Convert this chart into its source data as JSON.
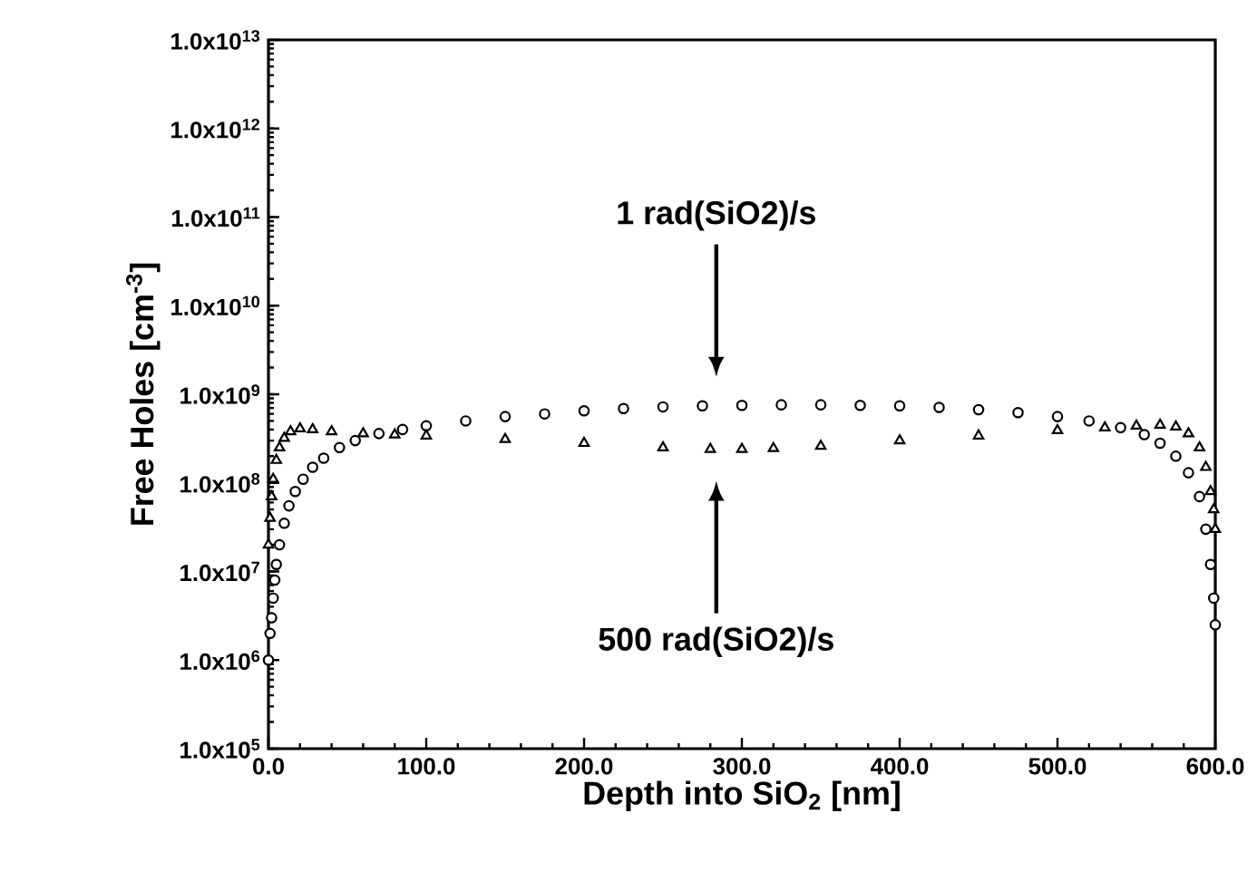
{
  "chart_data": {
    "type": "scatter",
    "xlabel": "Depth into SiO$_{2}$ [nm]",
    "ylabel": "Free Holes  [cm$^{-3}$]",
    "log": "y",
    "xlim": [
      0,
      600
    ],
    "ylim": [
      100000,
      10000000000000
    ],
    "xticks": [
      {
        "value": 0,
        "label": "0.0"
      },
      {
        "value": 100,
        "label": "100.0"
      },
      {
        "value": 200,
        "label": "200.0"
      },
      {
        "value": 300,
        "label": "300.0"
      },
      {
        "value": 400,
        "label": "400.0"
      },
      {
        "value": 500,
        "label": "500.0"
      },
      {
        "value": 600,
        "label": "600.0"
      }
    ],
    "yticks": [
      {
        "value": 100000,
        "label": "1.0x10$^{5}$"
      },
      {
        "value": 1000000,
        "label": "1.0x10$^{6}$"
      },
      {
        "value": 10000000,
        "label": "1.0x10$^{7}$"
      },
      {
        "value": 100000000,
        "label": "1.0x10$^{8}$"
      },
      {
        "value": 1000000000,
        "label": "1.0x10$^{9}$"
      },
      {
        "value": 10000000000,
        "label": "1.0x10$^{10}$"
      },
      {
        "value": 100000000000,
        "label": "1.0x10$^{11}$"
      },
      {
        "value": 1000000000000,
        "label": "1.0x10$^{12}$"
      },
      {
        "value": 10000000000000,
        "label": "1.0x10$^{13}$"
      }
    ],
    "series": [
      {
        "color": "#000000",
        "marker": "circle",
        "x": [
          0,
          1,
          2,
          3,
          4,
          5,
          7,
          10,
          13,
          17,
          22,
          28,
          35,
          45,
          55,
          70,
          85,
          100,
          125,
          150,
          175,
          200,
          225,
          250,
          275,
          300,
          325,
          350,
          375,
          400,
          425,
          450,
          475,
          500,
          520,
          540,
          555,
          565,
          575,
          583,
          590,
          594,
          597,
          599,
          600
        ],
        "values": [
          1000000.0,
          2000000.0,
          3000000.0,
          5000000.0,
          8000000.0,
          12000000.0,
          20000000.0,
          35000000.0,
          55000000.0,
          80000000.0,
          110000000.0,
          150000000.0,
          190000000.0,
          250000000.0,
          300000000.0,
          360000000.0,
          400000000.0,
          440000000.0,
          500000000.0,
          560000000.0,
          600000000.0,
          650000000.0,
          690000000.0,
          720000000.0,
          740000000.0,
          750000000.0,
          760000000.0,
          760000000.0,
          750000000.0,
          740000000.0,
          710000000.0,
          670000000.0,
          620000000.0,
          560000000.0,
          500000000.0,
          420000000.0,
          350000000.0,
          280000000.0,
          200000000.0,
          130000000.0,
          70000000.0,
          30000000.0,
          12000000.0,
          5000000.0,
          2500000.0
        ]
      },
      {
        "color": "#000000",
        "marker": "triangle",
        "x": [
          0,
          1,
          2,
          3,
          5,
          7,
          10,
          14,
          20,
          28,
          40,
          60,
          80,
          100,
          150,
          200,
          250,
          280,
          300,
          320,
          350,
          400,
          450,
          500,
          530,
          550,
          565,
          575,
          583,
          590,
          594,
          597,
          599,
          600
        ],
        "values": [
          20000000.0,
          40000000.0,
          70000000.0,
          110000000.0,
          180000000.0,
          250000000.0,
          320000000.0,
          380000000.0,
          410000000.0,
          400000000.0,
          380000000.0,
          360000000.0,
          350000000.0,
          340000000.0,
          310000000.0,
          280000000.0,
          250000000.0,
          240000000.0,
          240000000.0,
          245000000.0,
          260000000.0,
          300000000.0,
          340000000.0,
          390000000.0,
          420000000.0,
          440000000.0,
          450000000.0,
          430000000.0,
          360000000.0,
          250000000.0,
          150000000.0,
          80000000.0,
          50000000.0,
          30000000.0
        ]
      }
    ],
    "annotations": [
      "1 rad(SiO2)/s",
      "500 rad(SiO2)/s"
    ]
  }
}
